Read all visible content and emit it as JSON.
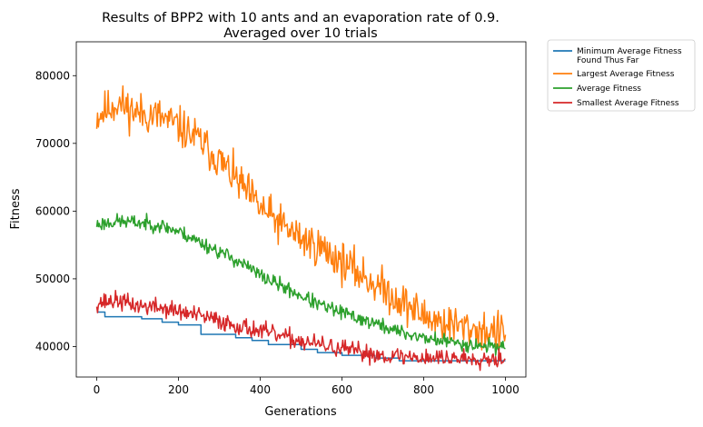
{
  "chart_data": {
    "type": "line",
    "title_lines": [
      "Results of BPP2 with 10 ants and an evaporation rate of 0.9.",
      "Averaged over 10 trials"
    ],
    "xlabel": "Generations",
    "ylabel": "Fitness",
    "xlim": [
      -50,
      1050
    ],
    "ylim": [
      35500,
      85000
    ],
    "xticks": [
      0,
      200,
      400,
      600,
      800,
      1000
    ],
    "yticks": [
      40000,
      50000,
      60000,
      70000,
      80000
    ],
    "legend_position": "outside-upper-right",
    "grid": false,
    "series": [
      {
        "name_lines": [
          "Minimum Average Fitness",
          "Found Thus Far"
        ],
        "color": "#1f77b4",
        "style": "step",
        "points": [
          [
            0,
            45100
          ],
          [
            20,
            45100
          ],
          [
            20,
            44400
          ],
          [
            110,
            44400
          ],
          [
            110,
            44100
          ],
          [
            160,
            44100
          ],
          [
            160,
            43600
          ],
          [
            200,
            43600
          ],
          [
            200,
            43200
          ],
          [
            255,
            43200
          ],
          [
            255,
            41800
          ],
          [
            340,
            41800
          ],
          [
            340,
            41300
          ],
          [
            380,
            41300
          ],
          [
            380,
            40900
          ],
          [
            420,
            40900
          ],
          [
            420,
            40300
          ],
          [
            500,
            40300
          ],
          [
            500,
            39600
          ],
          [
            540,
            39600
          ],
          [
            540,
            39100
          ],
          [
            600,
            39100
          ],
          [
            600,
            38700
          ],
          [
            680,
            38700
          ],
          [
            680,
            38300
          ],
          [
            740,
            38300
          ],
          [
            740,
            37900
          ],
          [
            1000,
            37900
          ]
        ]
      },
      {
        "name": "Largest Average Fitness",
        "color": "#ff7f0e",
        "style": "noisy",
        "noise": 2200,
        "seed": 11,
        "points": [
          [
            0,
            74000
          ],
          [
            50,
            76000
          ],
          [
            100,
            74500
          ],
          [
            150,
            74000
          ],
          [
            200,
            72500
          ],
          [
            250,
            70500
          ],
          [
            300,
            67500
          ],
          [
            350,
            64000
          ],
          [
            400,
            60500
          ],
          [
            450,
            58000
          ],
          [
            500,
            56000
          ],
          [
            550,
            54500
          ],
          [
            600,
            52500
          ],
          [
            650,
            50500
          ],
          [
            700,
            48500
          ],
          [
            750,
            46500
          ],
          [
            800,
            44500
          ],
          [
            850,
            43500
          ],
          [
            900,
            42800
          ],
          [
            950,
            42300
          ],
          [
            1000,
            42000
          ]
        ]
      },
      {
        "name": "Average Fitness",
        "color": "#2ca02c",
        "style": "noisy",
        "noise": 800,
        "seed": 23,
        "points": [
          [
            0,
            58000
          ],
          [
            50,
            58500
          ],
          [
            100,
            58300
          ],
          [
            150,
            58000
          ],
          [
            200,
            57000
          ],
          [
            250,
            55500
          ],
          [
            300,
            54000
          ],
          [
            350,
            52500
          ],
          [
            400,
            50500
          ],
          [
            450,
            49000
          ],
          [
            500,
            47500
          ],
          [
            550,
            46000
          ],
          [
            600,
            45000
          ],
          [
            650,
            44000
          ],
          [
            700,
            43000
          ],
          [
            750,
            42000
          ],
          [
            800,
            41300
          ],
          [
            850,
            40800
          ],
          [
            900,
            40400
          ],
          [
            950,
            40100
          ],
          [
            1000,
            40000
          ]
        ]
      },
      {
        "name": "Smallest Average Fitness",
        "color": "#d62728",
        "style": "noisy",
        "noise": 1000,
        "seed": 37,
        "points": [
          [
            0,
            46500
          ],
          [
            50,
            46800
          ],
          [
            100,
            46000
          ],
          [
            150,
            45800
          ],
          [
            200,
            45200
          ],
          [
            250,
            44500
          ],
          [
            300,
            43800
          ],
          [
            350,
            43000
          ],
          [
            400,
            42300
          ],
          [
            450,
            41500
          ],
          [
            500,
            40800
          ],
          [
            550,
            40200
          ],
          [
            600,
            39600
          ],
          [
            650,
            39100
          ],
          [
            700,
            38700
          ],
          [
            750,
            38500
          ],
          [
            800,
            38400
          ],
          [
            850,
            38300
          ],
          [
            900,
            38300
          ],
          [
            950,
            38300
          ],
          [
            1000,
            38300
          ]
        ]
      }
    ]
  }
}
